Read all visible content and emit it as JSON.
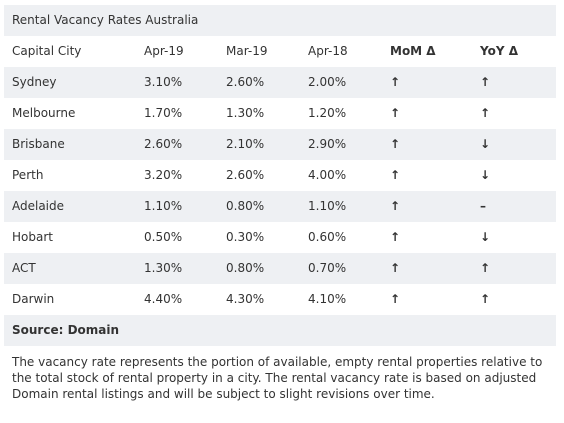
{
  "title": "Rental Vacancy Rates Australia",
  "table": {
    "header": [
      "Capital City",
      "Apr-19",
      "Mar-19",
      "Apr-18",
      "MoM Δ",
      "YoY Δ"
    ],
    "rows": [
      [
        "Sydney",
        "3.10%",
        "2.60%",
        "2.00%",
        "↑",
        "↑"
      ],
      [
        "Melbourne",
        "1.70%",
        "1.30%",
        "1.20%",
        "↑",
        "↑"
      ],
      [
        "Brisbane",
        "2.60%",
        "2.10%",
        "2.90%",
        "↑",
        "↓"
      ],
      [
        "Perth",
        "3.20%",
        "2.60%",
        "4.00%",
        "↑",
        "↓"
      ],
      [
        "Adelaide",
        "1.10%",
        "0.80%",
        "1.10%",
        "↑",
        "–"
      ],
      [
        "Hobart",
        "0.50%",
        "0.30%",
        "0.60%",
        "↑",
        "↓"
      ],
      [
        "ACT",
        "1.30%",
        "0.80%",
        "0.70%",
        "↑",
        "↑"
      ],
      [
        "Darwin",
        "4.40%",
        "4.30%",
        "4.10%",
        "↑",
        "↑"
      ]
    ]
  },
  "source": "Source: Domain",
  "note": "The vacancy rate represents the portion of available, empty rental properties relative to the total stock of rental property in a city. The rental vacancy rate is based on adjusted Domain rental listings and will be subject to slight revisions over time."
}
